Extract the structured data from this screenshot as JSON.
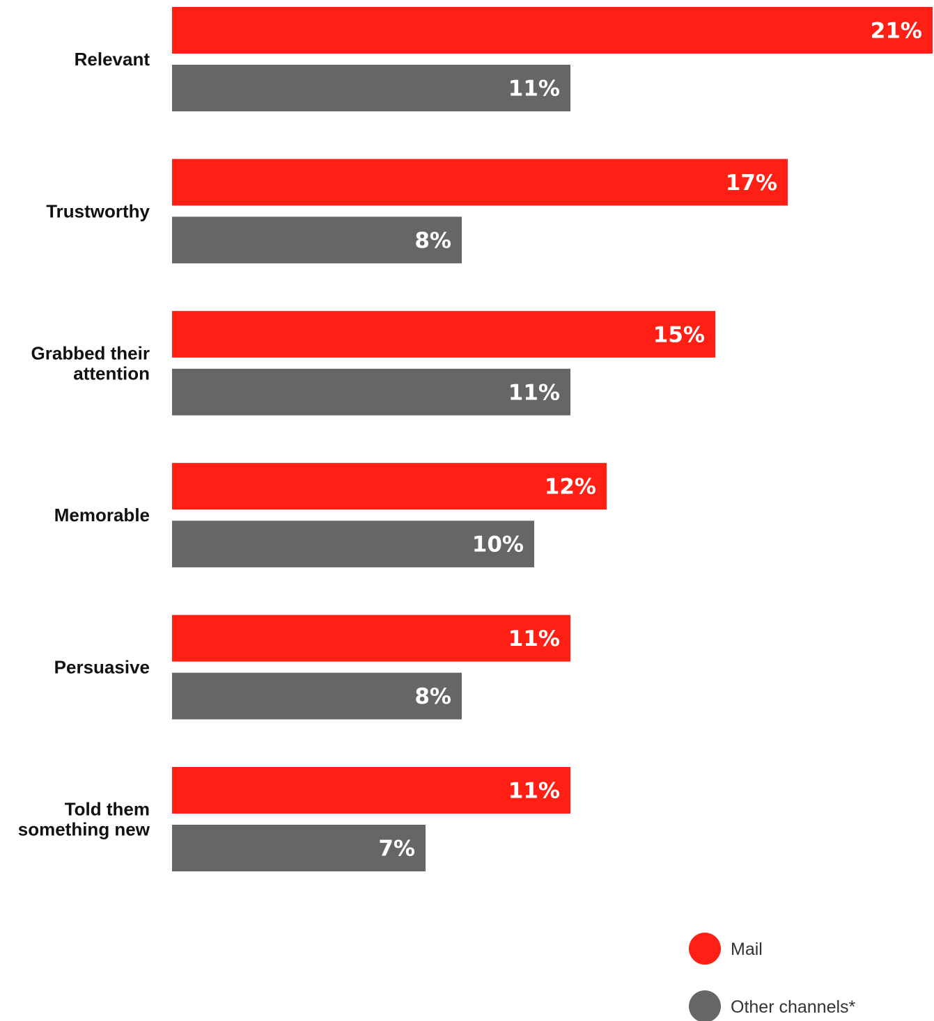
{
  "chart_data": {
    "type": "bar",
    "orientation": "horizontal",
    "categories": [
      [
        "Relevant"
      ],
      [
        "Trustworthy"
      ],
      [
        "Grabbed their",
        "attention"
      ],
      [
        "Memorable"
      ],
      [
        "Persuasive"
      ],
      [
        "Told them",
        "something new"
      ]
    ],
    "series": [
      {
        "name": "Mail",
        "color": "#ff1f14",
        "values": [
          21,
          17,
          15,
          12,
          11,
          11
        ],
        "labels": [
          "21%",
          "17%",
          "15%",
          "12%",
          "11%",
          "11%"
        ]
      },
      {
        "name": "Other channels*",
        "color": "#666666",
        "values": [
          11,
          8,
          11,
          10,
          8,
          7
        ],
        "labels": [
          "11%",
          "8%",
          "11%",
          "10%",
          "8%",
          "7%"
        ]
      }
    ],
    "xlim": [
      0,
      21
    ],
    "grid": false,
    "legend_position": "bottom-right"
  }
}
